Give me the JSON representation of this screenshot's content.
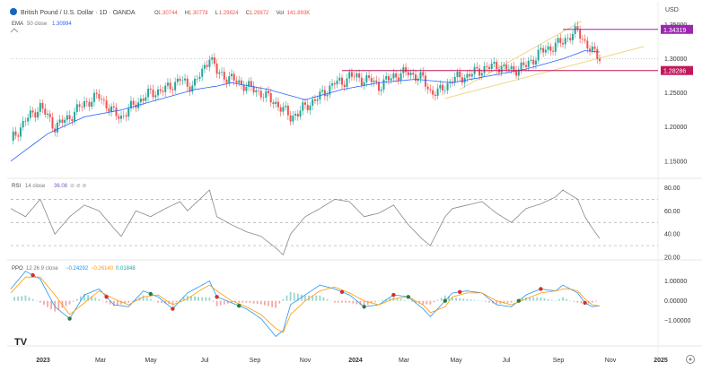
{
  "header": {
    "title": "British Pound / U.S. Dollar · 1D · OANDA",
    "ohlc": [
      {
        "k": "O",
        "v": "1.30744"
      },
      {
        "k": "H",
        "v": "1.30778"
      },
      {
        "k": "L",
        "v": "1.29824"
      },
      {
        "k": "C",
        "v": "1.29872"
      },
      {
        "k": "Vol",
        "v": "141.893K"
      }
    ],
    "ema_label": "EMA",
    "ema_period": "50 close",
    "ema_value": "1.30994",
    "currency": "USD"
  },
  "colors": {
    "up": "#26a69a",
    "down": "#ef5350",
    "ema": "#2962ff",
    "channel": "#f0d070",
    "level": "#9c27b0",
    "level_low": "#c2185b",
    "rsi_line": "#7e57c2",
    "ppo_line": "#2196f3",
    "signal_line": "#ff9800"
  },
  "chart_data": [
    {
      "type": "candlestick",
      "pane": "price",
      "ylim": [
        1.13,
        1.36
      ],
      "ticks": [
        "1.35000",
        "1.30000",
        "1.25000",
        "1.20000",
        "1.15000"
      ],
      "tick_values": [
        1.35,
        1.3,
        1.25,
        1.2,
        1.15
      ],
      "series": [
        {
          "name": "GBPUSD",
          "close_path": [
            [
              0,
              1.18
            ],
            [
              2,
              1.21
            ],
            [
              4,
              1.23
            ],
            [
              6,
              1.2
            ],
            [
              8,
              1.215
            ],
            [
              10,
              1.235
            ],
            [
              12,
              1.245
            ],
            [
              14,
              1.22
            ],
            [
              15,
              1.215
            ],
            [
              17,
              1.235
            ],
            [
              19,
              1.25
            ],
            [
              21,
              1.255
            ],
            [
              23,
              1.27
            ],
            [
              24,
              1.26
            ],
            [
              25,
              1.265
            ],
            [
              26,
              1.28
            ],
            [
              27,
              1.305
            ],
            [
              28,
              1.28
            ],
            [
              29,
              1.275
            ],
            [
              30,
              1.27
            ],
            [
              32,
              1.26
            ],
            [
              34,
              1.25
            ],
            [
              36,
              1.235
            ],
            [
              38,
              1.215
            ],
            [
              39,
              1.22
            ],
            [
              40,
              1.23
            ],
            [
              42,
              1.245
            ],
            [
              43,
              1.255
            ],
            [
              44,
              1.265
            ],
            [
              45,
              1.265
            ],
            [
              46,
              1.275
            ],
            [
              48,
              1.27
            ],
            [
              49,
              1.268
            ],
            [
              50,
              1.26
            ],
            [
              52,
              1.275
            ],
            [
              54,
              1.28
            ],
            [
              56,
              1.27
            ],
            [
              57,
              1.252
            ],
            [
              58,
              1.25
            ],
            [
              59,
              1.26
            ],
            [
              60,
              1.27
            ],
            [
              62,
              1.275
            ],
            [
              64,
              1.285
            ],
            [
              66,
              1.29
            ],
            [
              68,
              1.283
            ],
            [
              70,
              1.29
            ],
            [
              72,
              1.31
            ],
            [
              74,
              1.32
            ],
            [
              75,
              1.325
            ],
            [
              76,
              1.335
            ],
            [
              77,
              1.34
            ],
            [
              78,
              1.325
            ],
            [
              79,
              1.31
            ],
            [
              80,
              1.302
            ]
          ]
        },
        {
          "name": "EMA 50",
          "values": [
            [
              0,
              1.15
            ],
            [
              5,
              1.19
            ],
            [
              10,
              1.215
            ],
            [
              15,
              1.225
            ],
            [
              20,
              1.24
            ],
            [
              25,
              1.255
            ],
            [
              28,
              1.26
            ],
            [
              30,
              1.265
            ],
            [
              35,
              1.255
            ],
            [
              40,
              1.24
            ],
            [
              45,
              1.255
            ],
            [
              50,
              1.265
            ],
            [
              55,
              1.27
            ],
            [
              60,
              1.265
            ],
            [
              65,
              1.275
            ],
            [
              70,
              1.285
            ],
            [
              75,
              1.3
            ],
            [
              78,
              1.312
            ],
            [
              80,
              1.31
            ]
          ]
        }
      ],
      "levels": [
        {
          "label": "1.34319",
          "value": 1.34319,
          "from": 75
        },
        {
          "label": "1.28286",
          "value": 1.28286,
          "from": 45
        }
      ],
      "dotted_level": 1.3
    },
    {
      "type": "line",
      "pane": "rsi",
      "label": "RSI",
      "params": "14 close",
      "current": "36.08",
      "ylim": [
        20,
        85
      ],
      "ticks": [
        "80.00",
        "60.00",
        "40.00",
        "20.00"
      ],
      "tick_values": [
        80,
        60,
        40,
        20
      ],
      "bands": [
        70,
        50,
        30
      ],
      "values": [
        [
          0,
          62
        ],
        [
          2,
          55
        ],
        [
          4,
          70
        ],
        [
          6,
          40
        ],
        [
          8,
          55
        ],
        [
          10,
          65
        ],
        [
          12,
          60
        ],
        [
          14,
          45
        ],
        [
          15,
          38
        ],
        [
          17,
          60
        ],
        [
          19,
          55
        ],
        [
          21,
          62
        ],
        [
          23,
          68
        ],
        [
          24,
          60
        ],
        [
          26,
          72
        ],
        [
          27,
          78
        ],
        [
          28,
          55
        ],
        [
          30,
          48
        ],
        [
          32,
          42
        ],
        [
          34,
          38
        ],
        [
          36,
          28
        ],
        [
          37,
          22
        ],
        [
          38,
          40
        ],
        [
          40,
          55
        ],
        [
          42,
          62
        ],
        [
          44,
          70
        ],
        [
          46,
          68
        ],
        [
          48,
          55
        ],
        [
          50,
          58
        ],
        [
          52,
          65
        ],
        [
          54,
          48
        ],
        [
          56,
          35
        ],
        [
          57,
          30
        ],
        [
          59,
          55
        ],
        [
          60,
          62
        ],
        [
          62,
          65
        ],
        [
          64,
          68
        ],
        [
          66,
          58
        ],
        [
          68,
          50
        ],
        [
          70,
          62
        ],
        [
          72,
          66
        ],
        [
          74,
          72
        ],
        [
          75,
          78
        ],
        [
          76,
          74
        ],
        [
          77,
          70
        ],
        [
          78,
          55
        ],
        [
          79,
          45
        ],
        [
          80,
          36
        ]
      ]
    },
    {
      "type": "line",
      "pane": "ppo",
      "label": "PPO",
      "params": "12 26 9 close",
      "values_text": [
        "−0.24292",
        "−0.26140",
        "0.01848"
      ],
      "ylim": [
        -2.1,
        1.8
      ],
      "ticks": [
        "1.00000",
        "0.00000",
        "−1.00000"
      ],
      "tick_values": [
        1,
        0,
        -1
      ],
      "series": [
        {
          "name": "PPO",
          "values": [
            [
              0,
              0.6
            ],
            [
              2,
              1.5
            ],
            [
              4,
              1.1
            ],
            [
              6,
              -0.3
            ],
            [
              8,
              -0.9
            ],
            [
              10,
              0.3
            ],
            [
              12,
              0.6
            ],
            [
              14,
              -0.2
            ],
            [
              16,
              -0.3
            ],
            [
              18,
              0.5
            ],
            [
              20,
              0.2
            ],
            [
              22,
              -0.4
            ],
            [
              24,
              0.4
            ],
            [
              26,
              0.8
            ],
            [
              27,
              1.0
            ],
            [
              28,
              0.2
            ],
            [
              30,
              -0.1
            ],
            [
              32,
              -0.4
            ],
            [
              34,
              -0.9
            ],
            [
              36,
              -1.8
            ],
            [
              37,
              -1.5
            ],
            [
              38,
              -0.2
            ],
            [
              40,
              0.3
            ],
            [
              42,
              0.8
            ],
            [
              44,
              0.6
            ],
            [
              46,
              0.3
            ],
            [
              48,
              -0.3
            ],
            [
              50,
              -0.2
            ],
            [
              52,
              0.3
            ],
            [
              54,
              0.2
            ],
            [
              56,
              -0.4
            ],
            [
              57,
              -0.8
            ],
            [
              59,
              0.0
            ],
            [
              60,
              0.4
            ],
            [
              62,
              0.5
            ],
            [
              64,
              0.4
            ],
            [
              66,
              -0.2
            ],
            [
              68,
              -0.3
            ],
            [
              70,
              0.3
            ],
            [
              72,
              0.6
            ],
            [
              74,
              0.5
            ],
            [
              75,
              0.8
            ],
            [
              76,
              0.6
            ],
            [
              77,
              0.4
            ],
            [
              78,
              -0.1
            ],
            [
              79,
              -0.3
            ],
            [
              80,
              -0.25
            ]
          ]
        },
        {
          "name": "Signal",
          "values": [
            [
              0,
              0.4
            ],
            [
              2,
              1.2
            ],
            [
              4,
              1.2
            ],
            [
              6,
              0.3
            ],
            [
              8,
              -0.7
            ],
            [
              10,
              -0.1
            ],
            [
              12,
              0.5
            ],
            [
              14,
              0.1
            ],
            [
              16,
              -0.2
            ],
            [
              18,
              0.2
            ],
            [
              20,
              0.3
            ],
            [
              22,
              -0.2
            ],
            [
              24,
              0.1
            ],
            [
              26,
              0.6
            ],
            [
              27,
              0.8
            ],
            [
              28,
              0.5
            ],
            [
              30,
              0.0
            ],
            [
              32,
              -0.3
            ],
            [
              34,
              -0.7
            ],
            [
              36,
              -1.4
            ],
            [
              37,
              -1.6
            ],
            [
              38,
              -0.7
            ],
            [
              40,
              0.0
            ],
            [
              42,
              0.5
            ],
            [
              44,
              0.7
            ],
            [
              46,
              0.4
            ],
            [
              48,
              0.0
            ],
            [
              50,
              -0.2
            ],
            [
              52,
              0.1
            ],
            [
              54,
              0.2
            ],
            [
              56,
              -0.2
            ],
            [
              57,
              -0.6
            ],
            [
              59,
              -0.3
            ],
            [
              60,
              0.2
            ],
            [
              62,
              0.4
            ],
            [
              64,
              0.4
            ],
            [
              66,
              0.0
            ],
            [
              68,
              -0.2
            ],
            [
              70,
              0.1
            ],
            [
              72,
              0.4
            ],
            [
              74,
              0.5
            ],
            [
              75,
              0.6
            ],
            [
              76,
              0.6
            ],
            [
              77,
              0.5
            ],
            [
              78,
              0.1
            ],
            [
              79,
              -0.2
            ],
            [
              80,
              -0.26
            ]
          ]
        }
      ],
      "cross_up": [
        8,
        19,
        31,
        48,
        54,
        59,
        69
      ],
      "cross_down": [
        3,
        13,
        22,
        28,
        45,
        52,
        61,
        72,
        78
      ]
    }
  ],
  "x_axis": {
    "labels": [
      "2023",
      "Mar",
      "May",
      "Jul",
      "Sep",
      "Nov",
      "2024",
      "Mar",
      "May",
      "Jul",
      "Sep",
      "Nov",
      "2025"
    ],
    "bold": [
      "2023",
      "2024",
      "2025"
    ],
    "count": 80
  },
  "logo": "TV"
}
